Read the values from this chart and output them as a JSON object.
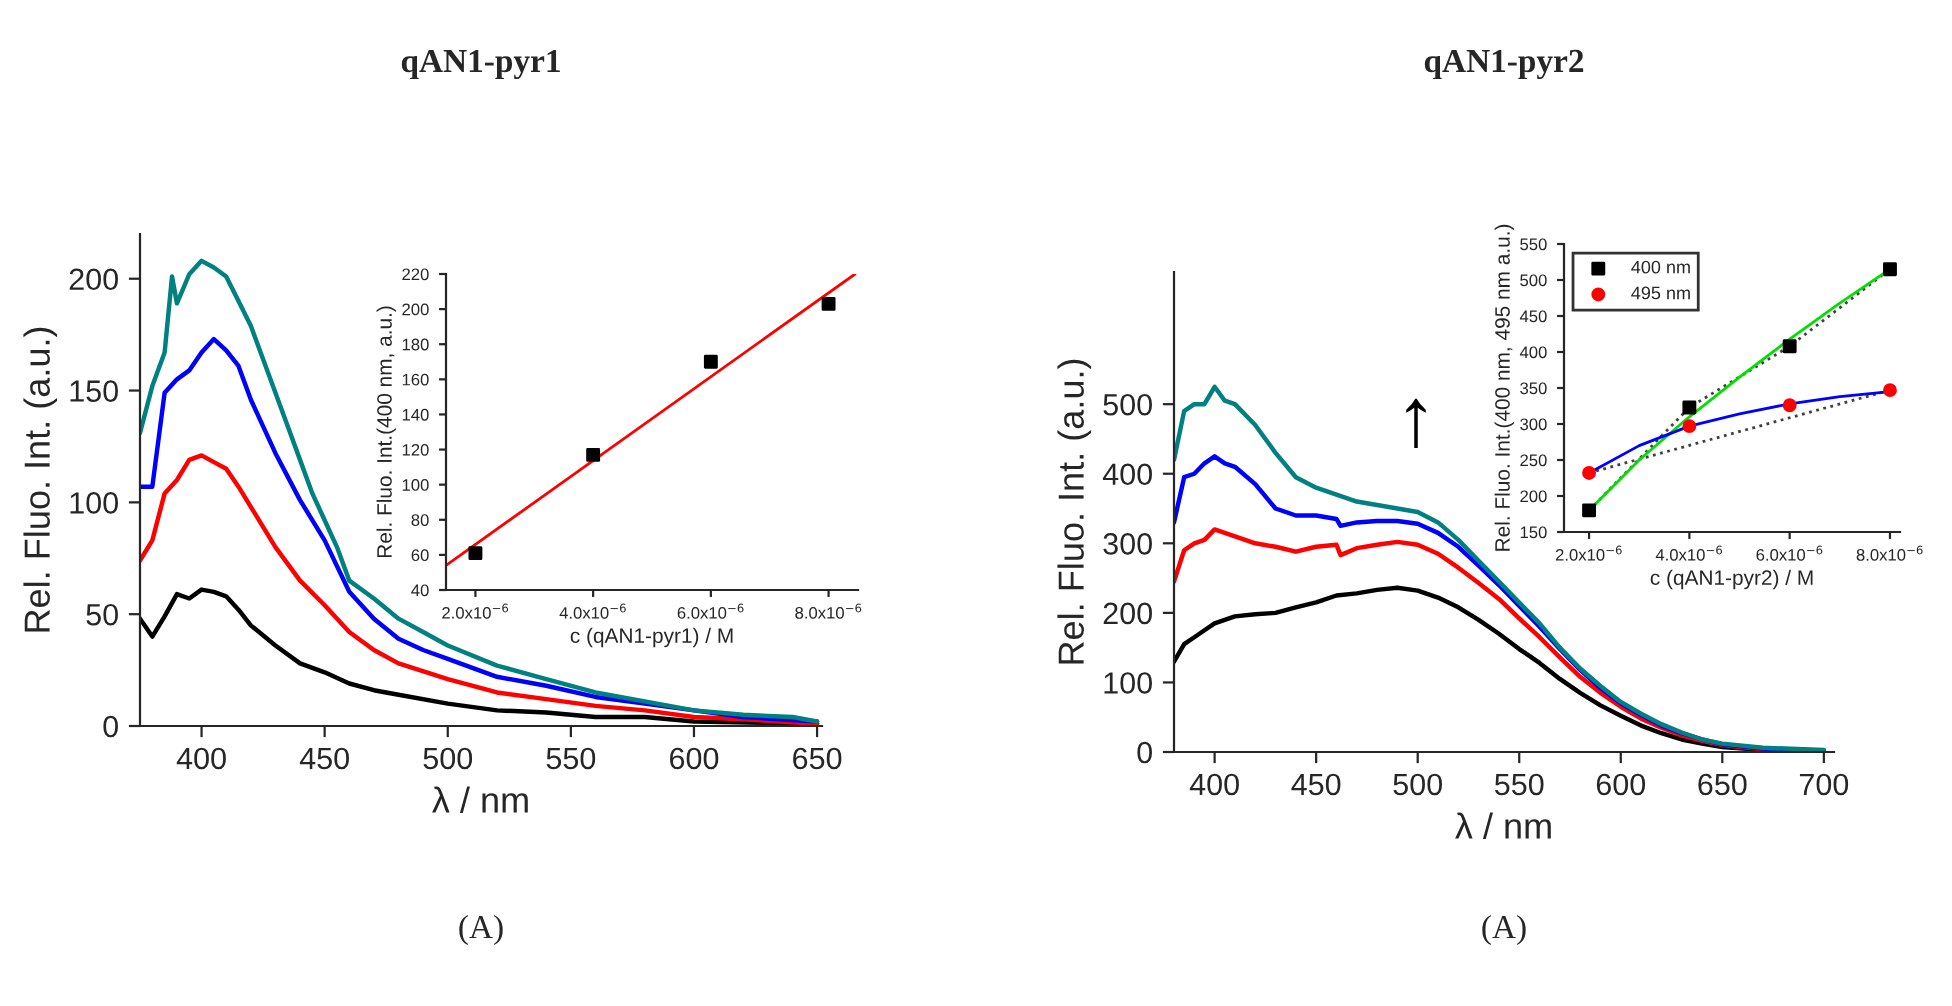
{
  "chart_data": [
    {
      "type": "line",
      "title": "qAN1-pyr1",
      "xlabel": "λ / nm",
      "ylabel": "Rel. Fluo. Int. (a.u.)",
      "xlim": [
        375,
        652
      ],
      "ylim": [
        0,
        220
      ],
      "xticks": [
        400,
        450,
        500,
        550,
        600,
        650
      ],
      "yticks": [
        0,
        50,
        100,
        150,
        200
      ],
      "grid": false,
      "annotations": [
        "(A)"
      ],
      "series": [
        {
          "color": "#000000",
          "x": [
            375,
            380,
            385,
            390,
            395,
            400,
            405,
            410,
            415,
            420,
            430,
            440,
            450,
            460,
            470,
            480,
            500,
            520,
            540,
            560,
            580,
            600,
            650
          ],
          "values": [
            48,
            40,
            49,
            59,
            57,
            61,
            60,
            58,
            52,
            45,
            36,
            28,
            24,
            19,
            16,
            14,
            10,
            7,
            6,
            4,
            4,
            2,
            1
          ]
        },
        {
          "color": "#ff0000",
          "x": [
            375,
            380,
            385,
            390,
            395,
            400,
            405,
            410,
            415,
            420,
            430,
            440,
            450,
            460,
            470,
            480,
            500,
            520,
            540,
            560,
            580,
            600,
            620,
            650
          ],
          "values": [
            74,
            83,
            104,
            110,
            119,
            121,
            118,
            115,
            107,
            98,
            80,
            65,
            54,
            42,
            34,
            28,
            21,
            15,
            12,
            9,
            7,
            4,
            3,
            1
          ]
        },
        {
          "color": "#0000ff",
          "x": [
            375,
            380,
            385,
            390,
            395,
            400,
            405,
            410,
            415,
            420,
            425,
            430,
            440,
            450,
            460,
            470,
            480,
            490,
            500,
            520,
            540,
            560,
            580,
            600,
            620,
            650
          ],
          "values": [
            107,
            107,
            149,
            155,
            159,
            167,
            173,
            168,
            161,
            146,
            134,
            122,
            101,
            83,
            60,
            48,
            39,
            34,
            30,
            22,
            18,
            13,
            10,
            7,
            4,
            2
          ]
        },
        {
          "color": "#008080",
          "x": [
            375,
            380,
            385,
            388,
            390,
            395,
            400,
            405,
            410,
            415,
            420,
            425,
            430,
            435,
            440,
            445,
            450,
            455,
            460,
            470,
            480,
            490,
            500,
            520,
            540,
            560,
            580,
            600,
            620,
            640,
            650
          ],
          "values": [
            131,
            152,
            167,
            201,
            189,
            202,
            208,
            205,
            201,
            190,
            179,
            164,
            149,
            134,
            119,
            104,
            92,
            80,
            65,
            57,
            48,
            42,
            36,
            27,
            21,
            15,
            11,
            7,
            5,
            4,
            2
          ]
        }
      ]
    },
    {
      "type": "scatter",
      "xlabel": "c (qAN1-pyr1) / M",
      "ylabel": "Rel. Fluo. Int.(400 nm, a.u.)",
      "xlim": [
        1.5e-06,
        8.5e-06
      ],
      "ylim": [
        40,
        220
      ],
      "xticks": [
        {
          "value": 2e-06,
          "label": "2.0x10$^{−6}$"
        },
        {
          "value": 4e-06,
          "label": "4.0x10$^{−6}$"
        },
        {
          "value": 6e-06,
          "label": "6.0x10$^{−6}$"
        },
        {
          "value": 8e-06,
          "label": "8.0x10$^{−6}$"
        }
      ],
      "yticks": [
        40,
        60,
        80,
        100,
        120,
        140,
        160,
        180,
        200,
        220
      ],
      "grid": false,
      "series": [
        {
          "color": "#000000",
          "marker": "square",
          "x": [
            2e-06,
            4e-06,
            6e-06,
            8e-06
          ],
          "values": [
            61,
            117,
            170,
            203
          ]
        },
        {
          "type": "line",
          "color": "#ff0000",
          "x": [
            1.5e-06,
            8.45e-06
          ],
          "values": [
            54,
            220
          ]
        }
      ]
    },
    {
      "type": "line",
      "title": "qAN1-pyr2",
      "xlabel": "λ / nm",
      "ylabel": "Rel. Fluo. Int. (a.u.)",
      "xlim": [
        380,
        705
      ],
      "ylim": [
        0,
        690
      ],
      "xticks": [
        400,
        450,
        500,
        550,
        600,
        650,
        700
      ],
      "yticks": [
        0,
        100,
        200,
        300,
        400,
        500
      ],
      "grid": false,
      "annotations": [
        "(A)",
        "↑"
      ],
      "series": [
        {
          "color": "#000000",
          "x": [
            380,
            385,
            390,
            395,
            400,
            410,
            420,
            430,
            440,
            450,
            460,
            470,
            480,
            490,
            500,
            510,
            520,
            530,
            540,
            550,
            560,
            570,
            580,
            590,
            600,
            610,
            620,
            630,
            640,
            650,
            670,
            700
          ],
          "values": [
            130,
            155,
            165,
            175,
            185,
            195,
            198,
            200,
            208,
            215,
            225,
            228,
            233,
            236,
            232,
            222,
            208,
            190,
            170,
            148,
            128,
            105,
            85,
            67,
            52,
            38,
            27,
            18,
            12,
            7,
            3,
            1
          ]
        },
        {
          "color": "#ff0000",
          "x": [
            380,
            385,
            390,
            395,
            400,
            410,
            420,
            430,
            440,
            450,
            460,
            462,
            470,
            480,
            490,
            500,
            510,
            520,
            530,
            540,
            550,
            560,
            570,
            580,
            590,
            600,
            610,
            620,
            630,
            640,
            650,
            670
          ],
          "values": [
            245,
            290,
            300,
            305,
            320,
            310,
            300,
            295,
            288,
            295,
            298,
            283,
            293,
            298,
            302,
            298,
            285,
            265,
            243,
            220,
            192,
            165,
            136,
            108,
            85,
            65,
            48,
            35,
            24,
            16,
            10,
            4
          ]
        },
        {
          "color": "#0000ff",
          "x": [
            380,
            385,
            390,
            395,
            400,
            405,
            410,
            420,
            430,
            440,
            450,
            460,
            462,
            470,
            480,
            490,
            500,
            510,
            520,
            530,
            540,
            550,
            560,
            570,
            580,
            590,
            600,
            610,
            620,
            630,
            640,
            650,
            670,
            700
          ],
          "values": [
            330,
            395,
            400,
            415,
            425,
            415,
            410,
            385,
            350,
            340,
            340,
            335,
            325,
            330,
            332,
            332,
            328,
            315,
            295,
            268,
            240,
            210,
            180,
            148,
            118,
            92,
            70,
            53,
            38,
            27,
            18,
            11,
            5,
            2
          ]
        },
        {
          "color": "#008080",
          "x": [
            380,
            385,
            390,
            395,
            400,
            405,
            410,
            420,
            430,
            440,
            450,
            460,
            470,
            480,
            490,
            500,
            510,
            520,
            530,
            540,
            550,
            560,
            570,
            580,
            590,
            600,
            610,
            620,
            630,
            640,
            650,
            670,
            700
          ],
          "values": [
            420,
            490,
            500,
            500,
            525,
            505,
            500,
            470,
            430,
            395,
            380,
            370,
            360,
            355,
            350,
            345,
            330,
            305,
            275,
            245,
            215,
            185,
            150,
            120,
            95,
            72,
            55,
            40,
            28,
            18,
            12,
            6,
            3
          ]
        }
      ]
    },
    {
      "type": "scatter",
      "xlabel": "c (qAN1-pyr2) / M",
      "ylabel": "Rel. Fluo. Int.(400 nm, 495 nm a.u.)",
      "xlim": [
        1.5e-06,
        8.2e-06
      ],
      "ylim": [
        150,
        550
      ],
      "xticks": [
        {
          "value": 2e-06,
          "label": "2.0x10$^{−6}$"
        },
        {
          "value": 4e-06,
          "label": "4.0x10$^{−6}$"
        },
        {
          "value": 6e-06,
          "label": "6.0x10$^{−6}$"
        },
        {
          "value": 8e-06,
          "label": "8.0x10$^{−6}$"
        }
      ],
      "yticks": [
        150,
        200,
        250,
        300,
        350,
        400,
        450,
        500,
        550
      ],
      "grid": false,
      "legend": "top left",
      "series": [
        {
          "type": "line",
          "color": "#404040",
          "line_style": "dotted",
          "x": [
            2e-06,
            4e-06,
            6e-06,
            8e-06
          ],
          "values": [
            180,
            323,
            408,
            515
          ]
        },
        {
          "type": "line",
          "color": "#404040",
          "line_style": "dotted",
          "x": [
            2e-06,
            8e-06
          ],
          "values": [
            232,
            347
          ]
        },
        {
          "type": "line",
          "color": "#00e000",
          "x": [
            2e-06,
            3e-06,
            4e-06,
            5e-06,
            6e-06,
            7e-06,
            8e-06
          ],
          "values": [
            180,
            250,
            310,
            365,
            418,
            468,
            515
          ]
        },
        {
          "type": "line",
          "color": "#0000ff",
          "x": [
            2e-06,
            3e-06,
            4e-06,
            5e-06,
            6e-06,
            7e-06,
            8e-06
          ],
          "values": [
            232,
            270,
            297,
            314,
            328,
            338,
            345
          ]
        },
        {
          "name": "400 nm",
          "color": "#000000",
          "marker": "square",
          "x": [
            2e-06,
            4e-06,
            6e-06,
            8e-06
          ],
          "values": [
            180,
            323,
            408,
            515
          ]
        },
        {
          "name": "495 nm",
          "color": "#ff0000",
          "marker": "circle",
          "x": [
            2e-06,
            4e-06,
            6e-06,
            8e-06
          ],
          "values": [
            232,
            297,
            326,
            347
          ]
        }
      ]
    }
  ]
}
